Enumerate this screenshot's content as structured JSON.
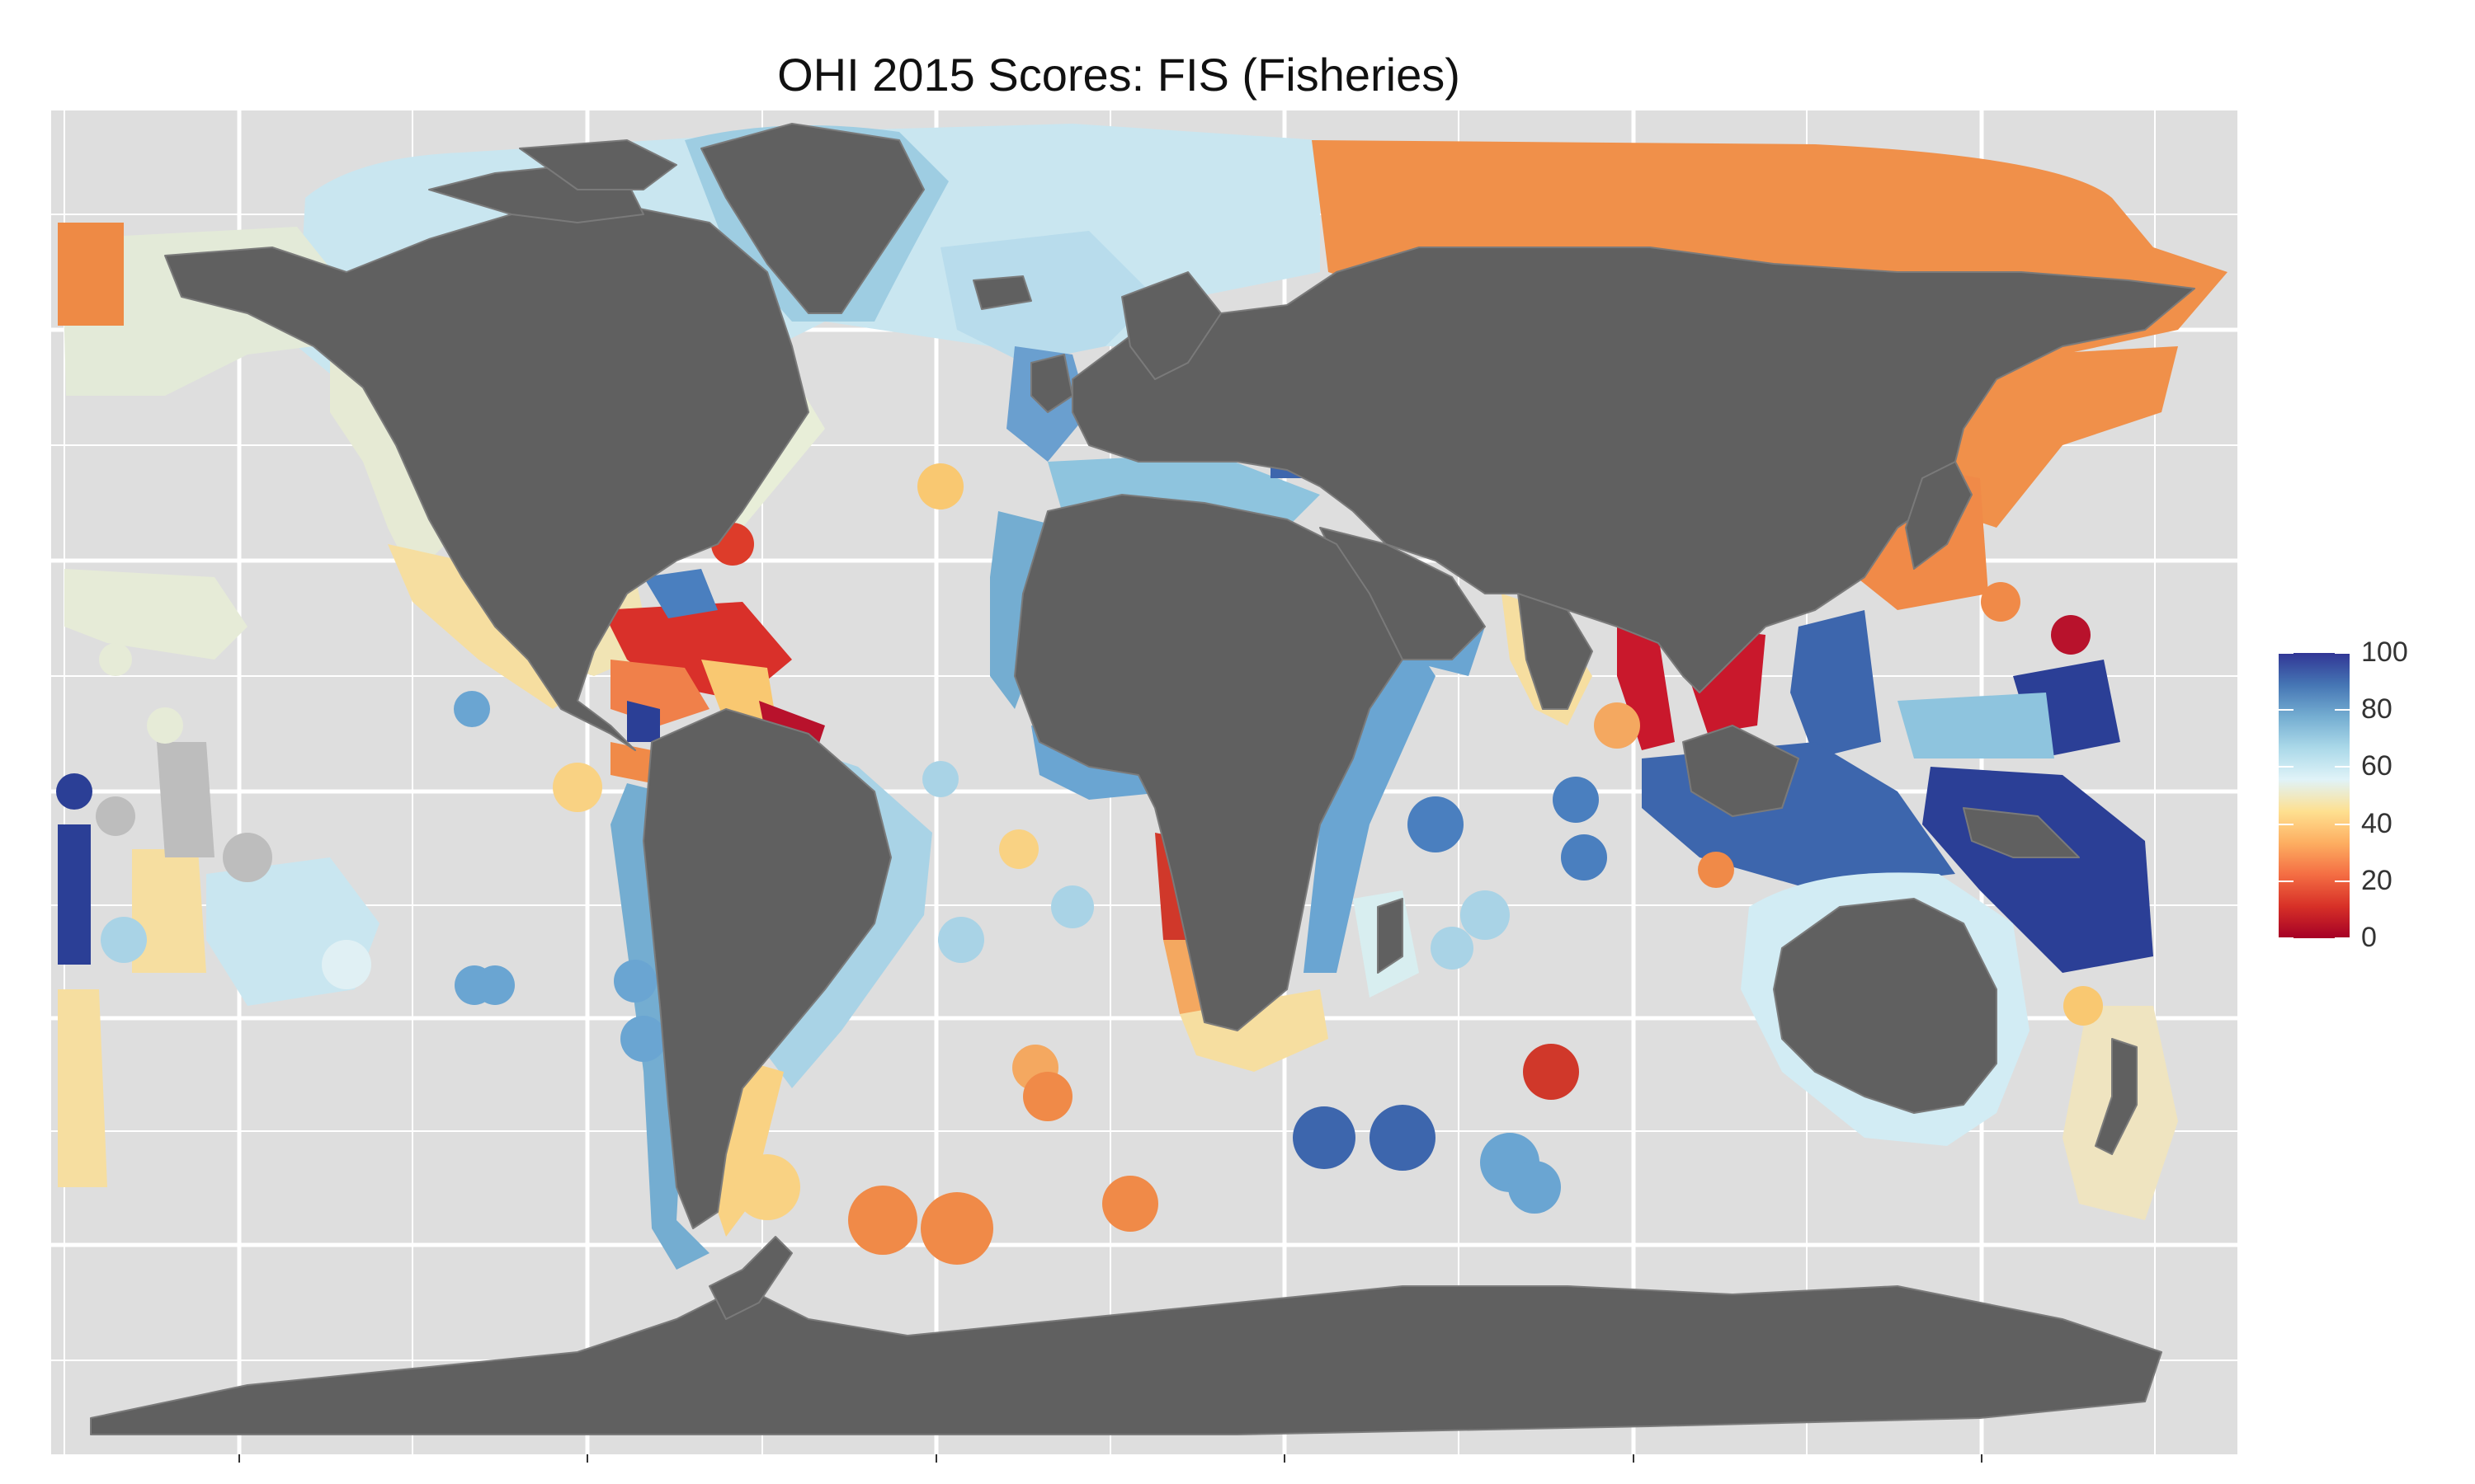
{
  "title": "OHI 2015 Scores: FIS (Fisheries)",
  "legend": {
    "labels": [
      "100",
      "80",
      "60",
      "40",
      "20",
      "0"
    ],
    "min": 0,
    "max": 100,
    "gradient_colors": [
      "#a50026",
      "#d73027",
      "#f46d43",
      "#fdae61",
      "#fee090",
      "#e0f3f8",
      "#abd9e9",
      "#74add1",
      "#4575b4",
      "#313695"
    ]
  },
  "colors": {
    "ocean": "#dedede",
    "grid": "#ffffff",
    "land": "#606060",
    "land_border": "#7a7a7a",
    "no_data": "#bdbdbd"
  }
}
